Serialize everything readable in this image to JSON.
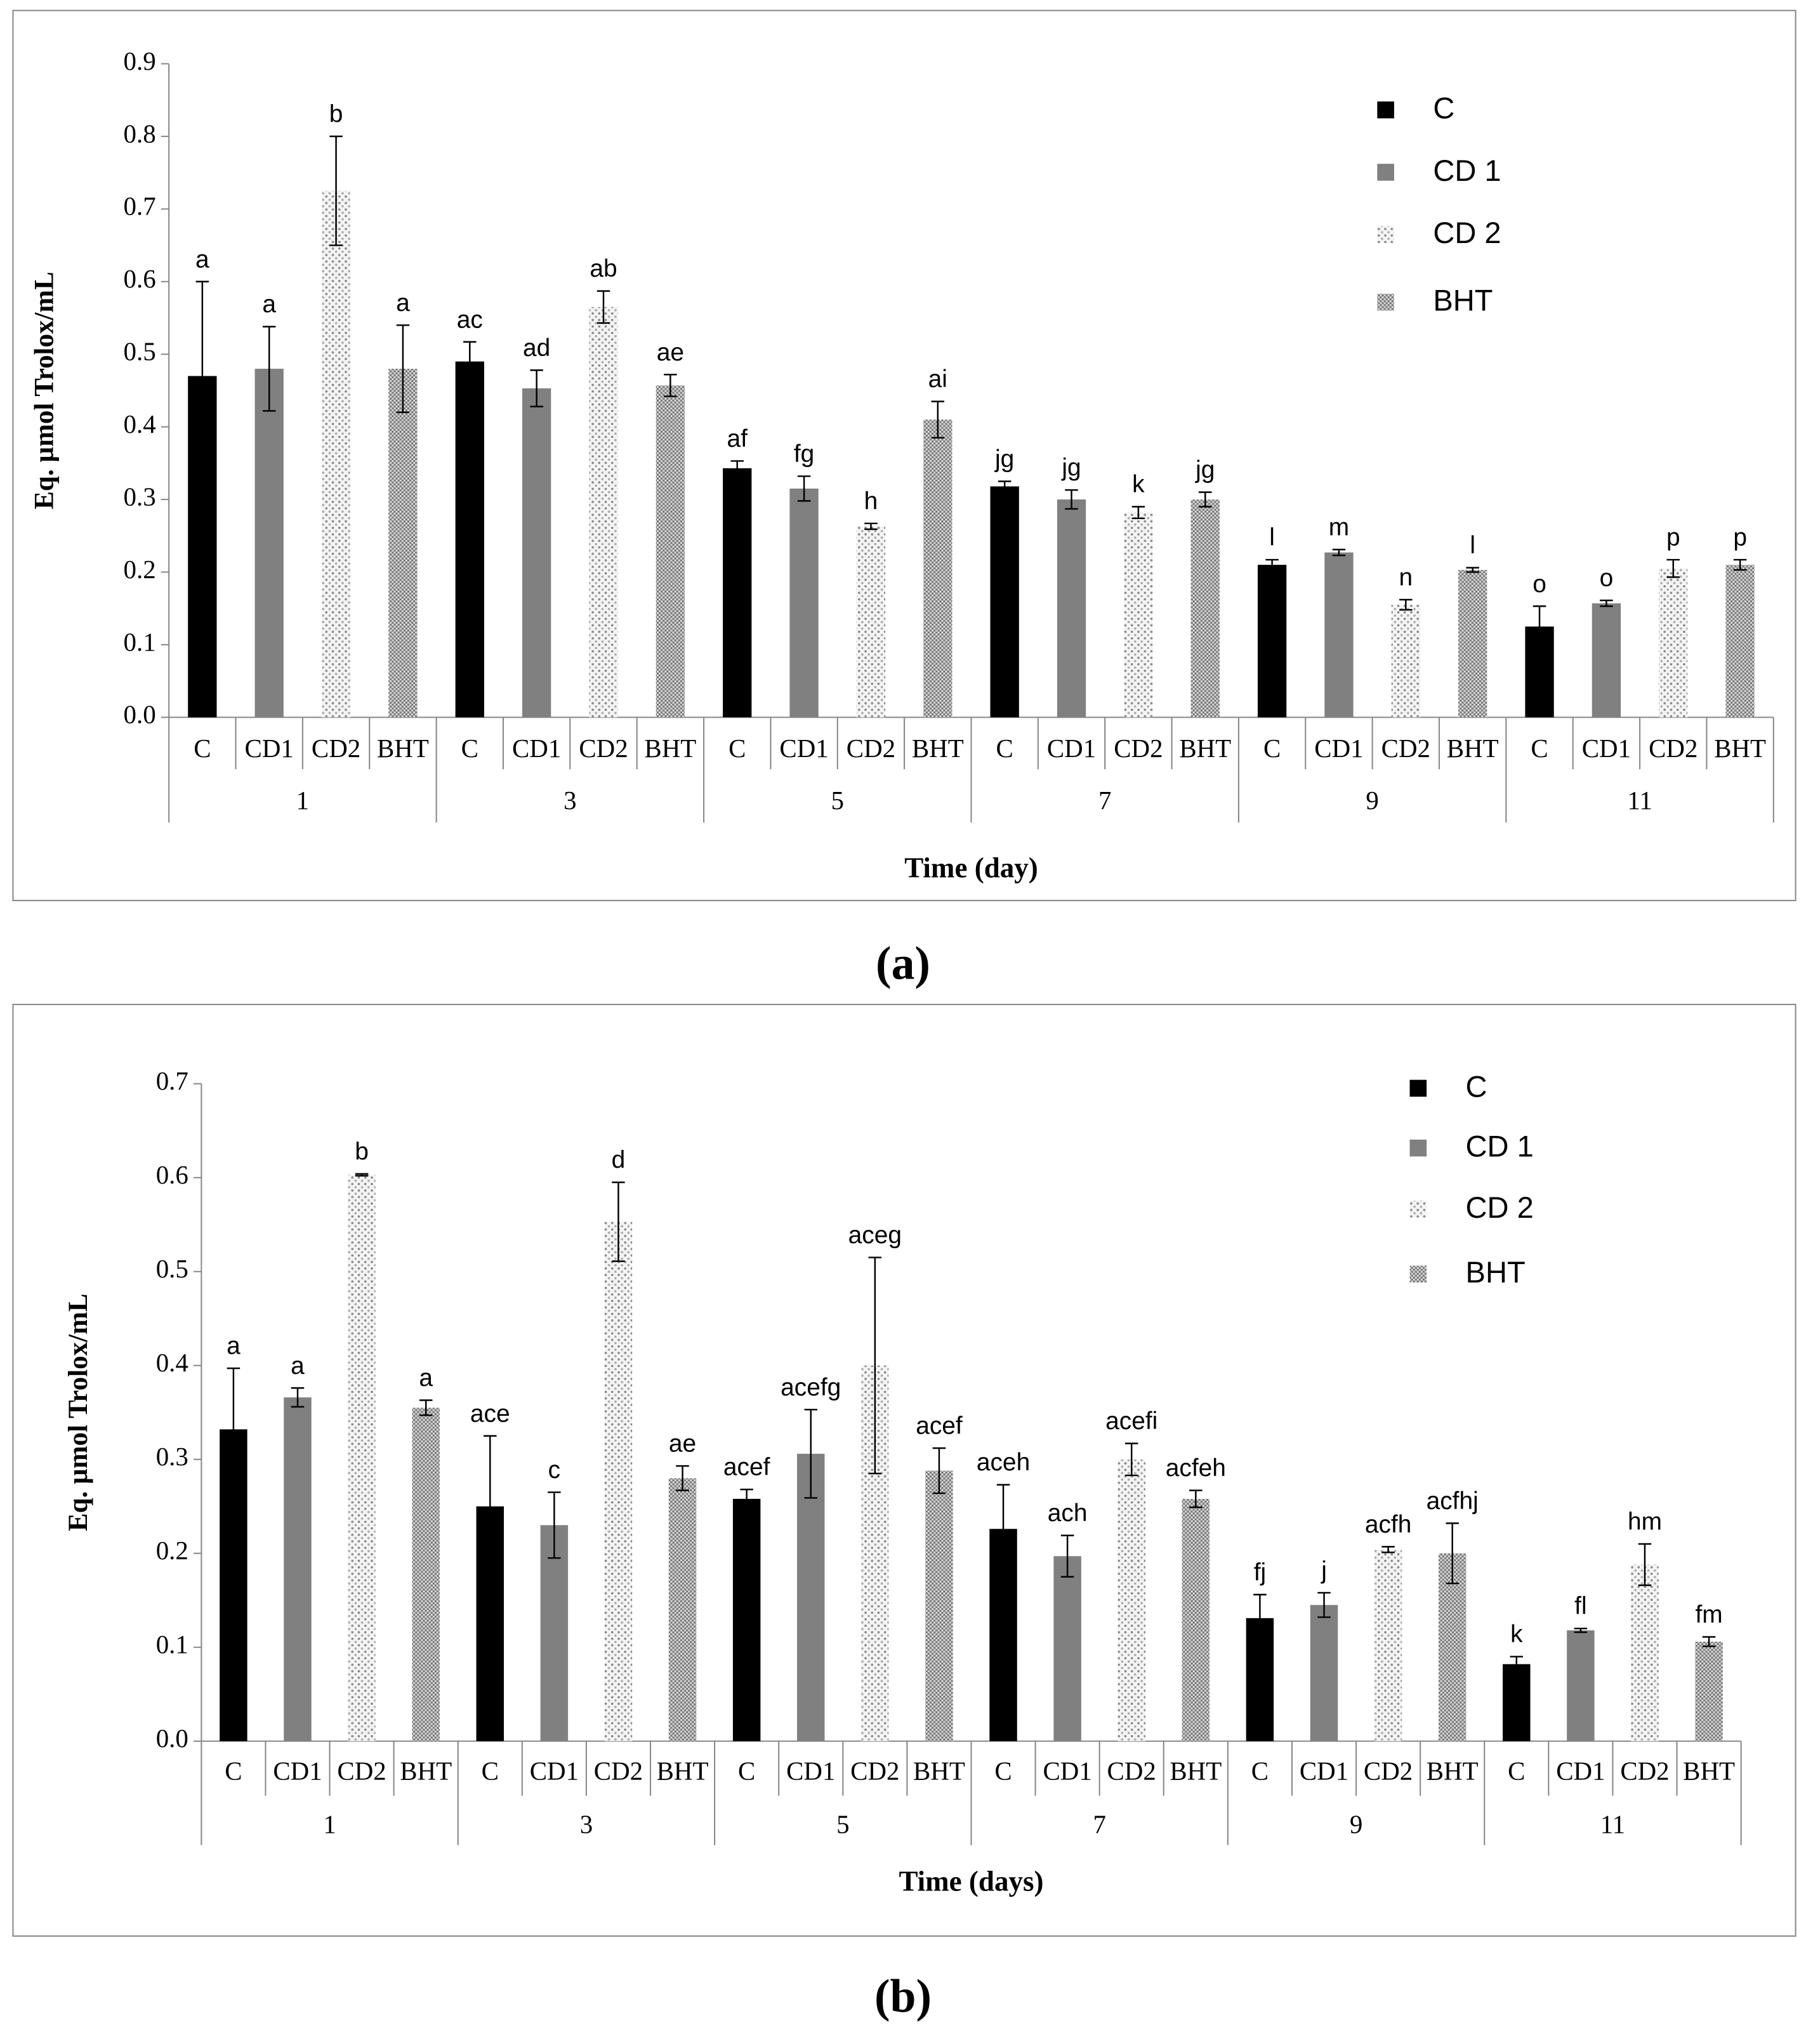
{
  "chart_data": [
    {
      "type": "bar",
      "caption": "(a)",
      "y_label": "Eq. µmol Trolox/mL",
      "x_label": "Time (day)",
      "groups": [
        "1",
        "3",
        "5",
        "7",
        "9",
        "11"
      ],
      "subcategories": [
        "C",
        "CD1",
        "CD2",
        "BHT"
      ],
      "ylim": [
        0,
        0.9
      ],
      "yticks": [
        {
          "value": 0,
          "label": "0.0"
        },
        0.1,
        0.2,
        0.3,
        0.4,
        0.5,
        0.6,
        0.7,
        0.8,
        0.9
      ],
      "legend": "top-right",
      "series": [
        {
          "name": "C",
          "color": "#000000",
          "pattern": "solid",
          "values": [
            0.47,
            0.49,
            0.343,
            0.318,
            0.21,
            0.125
          ],
          "errors": [
            0.13,
            0.027,
            0.01,
            0.007,
            0.007,
            0.028
          ],
          "annotations": [
            "a",
            "ac",
            "af",
            "jg",
            "l",
            "o"
          ]
        },
        {
          "name": "CD 1",
          "color": "#808080",
          "pattern": "solid",
          "values": [
            0.48,
            0.453,
            0.315,
            0.3,
            0.227,
            0.157
          ],
          "errors": [
            0.058,
            0.025,
            0.017,
            0.013,
            0.004,
            0.004
          ],
          "annotations": [
            "a",
            "ad",
            "fg",
            "jg",
            "m",
            "o"
          ]
        },
        {
          "name": "CD 2",
          "color": "#cfcfcf",
          "pattern": "dots",
          "values": [
            0.725,
            0.565,
            0.263,
            0.282,
            0.155,
            0.205
          ],
          "errors": [
            0.075,
            0.022,
            0.004,
            0.008,
            0.007,
            0.012
          ],
          "annotations": [
            "b",
            "ab",
            "h",
            "k",
            "n",
            "p"
          ]
        },
        {
          "name": "BHT",
          "color": "#a0a0a0",
          "pattern": "checker",
          "values": [
            0.48,
            0.457,
            0.41,
            0.3,
            0.203,
            0.21
          ],
          "errors": [
            0.06,
            0.015,
            0.025,
            0.01,
            0.003,
            0.007
          ],
          "annotations": [
            "a",
            "ae",
            "ai",
            "jg",
            "l",
            "p"
          ]
        }
      ]
    },
    {
      "type": "bar",
      "caption": "(b)",
      "y_label": "Eq. µmol Trolox/mL",
      "x_label": "Time (days)",
      "groups": [
        "1",
        "3",
        "5",
        "7",
        "9",
        "11"
      ],
      "subcategories": [
        "C",
        "CD1",
        "CD2",
        "BHT"
      ],
      "ylim": [
        0,
        0.7
      ],
      "yticks": [
        {
          "value": 0,
          "label": "0.0"
        },
        0.1,
        0.2,
        0.3,
        0.4,
        0.5,
        0.6,
        0.7
      ],
      "legend": "top-right",
      "series": [
        {
          "name": "C",
          "color": "#000000",
          "pattern": "solid",
          "values": [
            0.332,
            0.25,
            0.258,
            0.226,
            0.131,
            0.082
          ],
          "errors": [
            0.065,
            0.075,
            0.01,
            0.047,
            0.025,
            0.008
          ],
          "annotations": [
            "a",
            "ace",
            "acef",
            "aceh",
            "fj",
            "k"
          ]
        },
        {
          "name": "CD 1",
          "color": "#808080",
          "pattern": "solid",
          "values": [
            0.366,
            0.23,
            0.306,
            0.197,
            0.145,
            0.118
          ],
          "errors": [
            0.01,
            0.035,
            0.047,
            0.022,
            0.013,
            0.002
          ],
          "annotations": [
            "a",
            "c",
            "acefg",
            "ach",
            "j",
            "fl"
          ]
        },
        {
          "name": "CD 2",
          "color": "#cfcfcf",
          "pattern": "dots",
          "values": [
            0.603,
            0.553,
            0.4,
            0.3,
            0.204,
            0.188
          ],
          "errors": [
            0.001,
            0.042,
            0.115,
            0.017,
            0.003,
            0.022
          ],
          "annotations": [
            "b",
            "d",
            "aceg",
            "acefi",
            "acfh",
            "hm"
          ]
        },
        {
          "name": "BHT",
          "color": "#a0a0a0",
          "pattern": "checker",
          "values": [
            0.355,
            0.28,
            0.288,
            0.258,
            0.2,
            0.106
          ],
          "errors": [
            0.008,
            0.013,
            0.024,
            0.009,
            0.032,
            0.005
          ],
          "annotations": [
            "a",
            "ae",
            "acef",
            "acfeh",
            "acfhj",
            "fm"
          ]
        }
      ]
    }
  ]
}
